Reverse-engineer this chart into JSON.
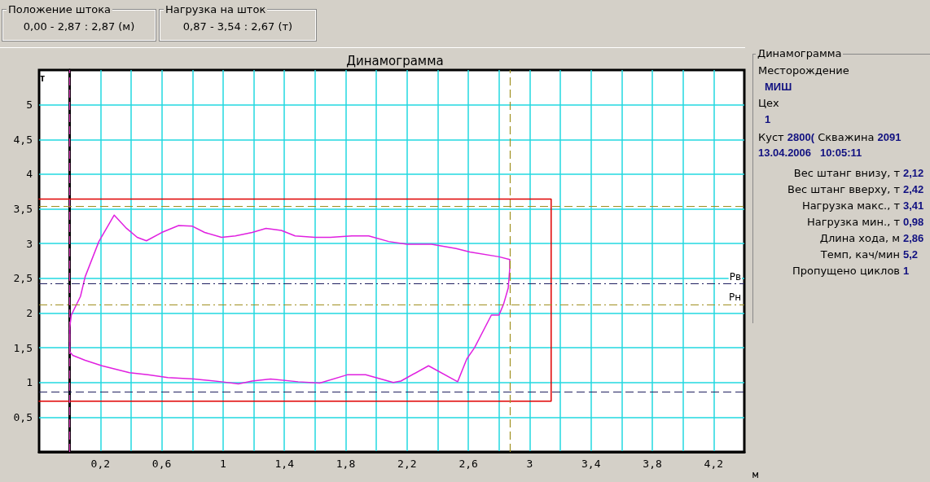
{
  "chart_data": {
    "type": "line",
    "title": "Динамограмма",
    "xlabel": "м",
    "ylabel": "т",
    "xlim": [
      -0.2,
      4.4
    ],
    "ylim": [
      0,
      5.5
    ],
    "xticks": [
      {
        "value": 0,
        "label": null
      },
      {
        "value": 0.2,
        "label": "0,2"
      },
      {
        "value": 0.4,
        "label": null
      },
      {
        "value": 0.6,
        "label": "0,6"
      },
      {
        "value": 0.8,
        "label": null
      },
      1,
      {
        "value": 1.2,
        "label": null
      },
      {
        "value": 1.4,
        "label": "1,4"
      },
      {
        "value": 1.6,
        "label": null
      },
      {
        "value": 1.8,
        "label": "1,8"
      },
      {
        "value": 2,
        "label": null
      },
      {
        "value": 2.2,
        "label": "2,2"
      },
      {
        "value": 2.4,
        "label": null
      },
      {
        "value": 2.6,
        "label": "2,6"
      },
      {
        "value": 2.8,
        "label": null
      },
      3,
      {
        "value": 3.2,
        "label": null
      },
      {
        "value": 3.4,
        "label": "3,4"
      },
      {
        "value": 3.6,
        "label": null
      },
      {
        "value": 3.8,
        "label": "3,8"
      },
      {
        "value": 4,
        "label": null
      },
      {
        "value": 4.2,
        "label": "4,2"
      }
    ],
    "yticks": [
      {
        "value": 0.5,
        "label": "0,5"
      },
      1,
      {
        "value": 1.5,
        "label": "1,5"
      },
      2,
      {
        "value": 2.5,
        "label": "2,5"
      },
      3,
      {
        "value": 3.5,
        "label": "3,5"
      },
      4,
      {
        "value": 4.5,
        "label": "4,5"
      },
      5
    ],
    "grid": true,
    "marker": "none",
    "series": [
      {
        "color": "#e020e0",
        "line_style": "solid",
        "x": [
          0,
          0,
          0.01,
          0.07,
          0.1,
          0.19,
          0.29,
          0.37,
          0.44,
          0.5,
          0.6,
          0.71,
          0.8,
          0.88,
          0.99,
          1.08,
          1.19,
          1.28,
          1.38,
          1.47,
          1.6,
          1.7,
          1.84,
          1.95,
          2.08,
          2.2,
          2.36,
          2.52,
          2.61,
          2.8,
          2.87
        ],
        "values": [
          1.44,
          1.79,
          1.97,
          2.24,
          2.52,
          3.03,
          3.41,
          3.22,
          3.09,
          3.04,
          3.16,
          3.26,
          3.25,
          3.16,
          3.09,
          3.11,
          3.16,
          3.22,
          3.19,
          3.11,
          3.09,
          3.09,
          3.11,
          3.11,
          3.03,
          2.99,
          2.99,
          2.93,
          2.88,
          2.81,
          2.77
        ]
      },
      {
        "color": "#e020e0",
        "line_style": "solid",
        "x": [
          2.87,
          2.87,
          2.86,
          2.83,
          2.8,
          2.75,
          2.64,
          2.59,
          2.53,
          2.34,
          2.16,
          2.11,
          1.93,
          1.81,
          1.63,
          1.49,
          1.31,
          1.19,
          1.1,
          0.99,
          0.81,
          0.64,
          0.51,
          0.39,
          0.21,
          0.1,
          0.02,
          0
        ],
        "values": [
          2.77,
          2.64,
          2.36,
          2.13,
          1.97,
          1.97,
          1.5,
          1.34,
          1.01,
          1.24,
          1.02,
          1.0,
          1.11,
          1.11,
          0.99,
          1.01,
          1.05,
          1.02,
          0.98,
          1.01,
          1.05,
          1.07,
          1.11,
          1.14,
          1.24,
          1.32,
          1.39,
          1.44
        ]
      },
      {
        "color": "#e00000",
        "line_style": "solid",
        "x": [
          -0.2,
          3.14,
          3.14,
          -0.2
        ],
        "values": [
          0.73,
          0.73,
          3.64,
          3.64
        ]
      }
    ],
    "ref_lines": [
      {
        "axis": "x",
        "value": 0,
        "label": null,
        "color": "#e040c0",
        "line_style": "dashed"
      },
      {
        "axis": "x",
        "value": 2.87,
        "label": null,
        "color": "#a09020",
        "line_style": "dashed"
      },
      {
        "axis": "y",
        "value": 3.54,
        "label": null,
        "color": "#a09020",
        "line_style": "dashed"
      },
      {
        "axis": "y",
        "value": 0.87,
        "label": null,
        "color": "#202060",
        "line_style": "dashed"
      },
      {
        "axis": "y",
        "value": 2.42,
        "label": "Рв",
        "color": "#202060",
        "line_style": "dashdot"
      },
      {
        "axis": "y",
        "value": 2.12,
        "label": "Рн",
        "color": "#a09020",
        "line_style": "dashdot"
      }
    ],
    "annotations": [
      "Положение штока",
      "0,00 - 2,87 : 2,87 (м)",
      "Нагрузка на шток",
      "0,87 - 3,54 : 2,67 (т)",
      "Динамограмма",
      "Месторождение",
      "МИШ",
      "Цех",
      "1",
      "Куст",
      "2800(",
      "Скважина",
      "2091",
      "13.04.2006   10:05:11",
      "Вес штанг внизу, т",
      "2,12",
      "Вес штанг вверху, т",
      "2,42",
      "Нагрузка макс., т",
      "3,41",
      "Нагрузка мин., т",
      "0,98",
      "Длина хода, м",
      "2,86",
      "Темп, кач/мин",
      "5,2",
      "Пропущено циклов",
      "1"
    ]
  }
}
